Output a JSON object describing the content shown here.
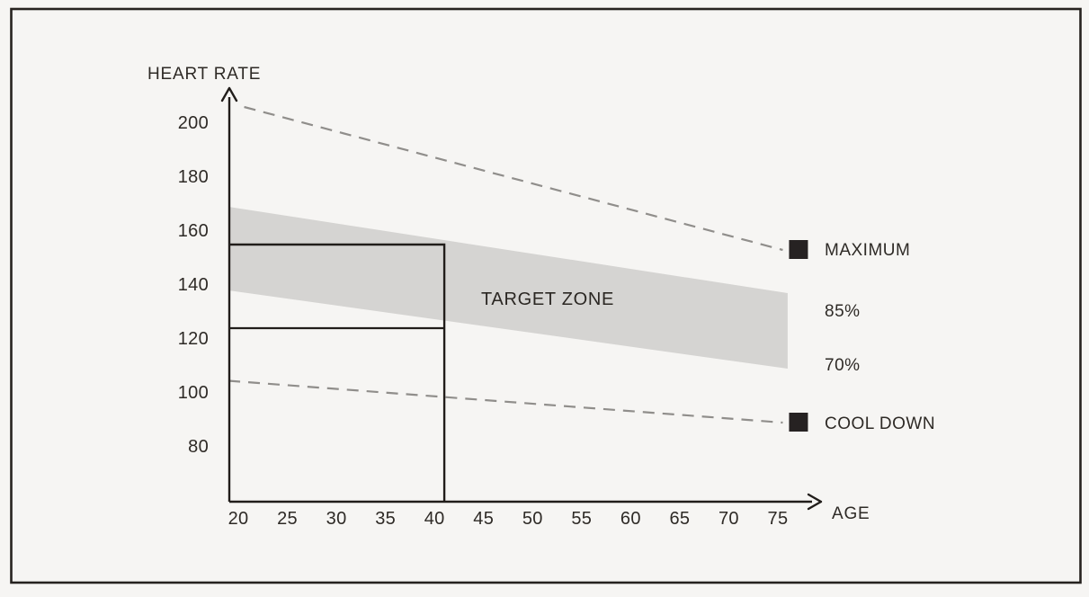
{
  "colors": {
    "background": "#f6f5f3",
    "border": "#26221f",
    "axis": "#211d1a",
    "band": "#d5d4d2",
    "dashed_line": "#908e8b",
    "marker_square": "#262222",
    "text": "#2e2a26"
  },
  "chart_data": {
    "type": "area",
    "title": "",
    "y_axis": {
      "label": "HEART RATE",
      "ticks": [
        200,
        180,
        160,
        140,
        120,
        100,
        80
      ],
      "range": [
        60,
        215
      ]
    },
    "x_axis": {
      "label": "AGE",
      "ticks": [
        20,
        25,
        30,
        35,
        40,
        45,
        50,
        55,
        60,
        65,
        70,
        75
      ],
      "range": [
        19,
        79
      ]
    },
    "grid": "off",
    "band": {
      "label": "TARGET ZONE",
      "upper_pct": "85%",
      "lower_pct": "70%",
      "top_edge": [
        {
          "age": 19,
          "bpm": 169
        },
        {
          "age": 76,
          "bpm": 137
        }
      ],
      "bottom_edge": [
        {
          "age": 19,
          "bpm": 138
        },
        {
          "age": 76,
          "bpm": 109
        }
      ]
    },
    "lines": [
      {
        "name": "MAXIMUM",
        "style": "dashed",
        "marker": "black-square",
        "points": [
          {
            "age": 20.6,
            "bpm": 206
          },
          {
            "age": 75.5,
            "bpm": 153
          }
        ]
      },
      {
        "name": "COOL DOWN",
        "style": "dashed",
        "marker": "black-square",
        "points": [
          {
            "age": 19,
            "bpm": 104.5
          },
          {
            "age": 75.5,
            "bpm": 89
          }
        ]
      }
    ],
    "highlight_rectangle": {
      "age": 41,
      "upper_bpm": 155,
      "lower_bpm": 124,
      "note": "example reading: person aged ~41 has target zone 124-155 bpm"
    },
    "legend_position": "right"
  }
}
